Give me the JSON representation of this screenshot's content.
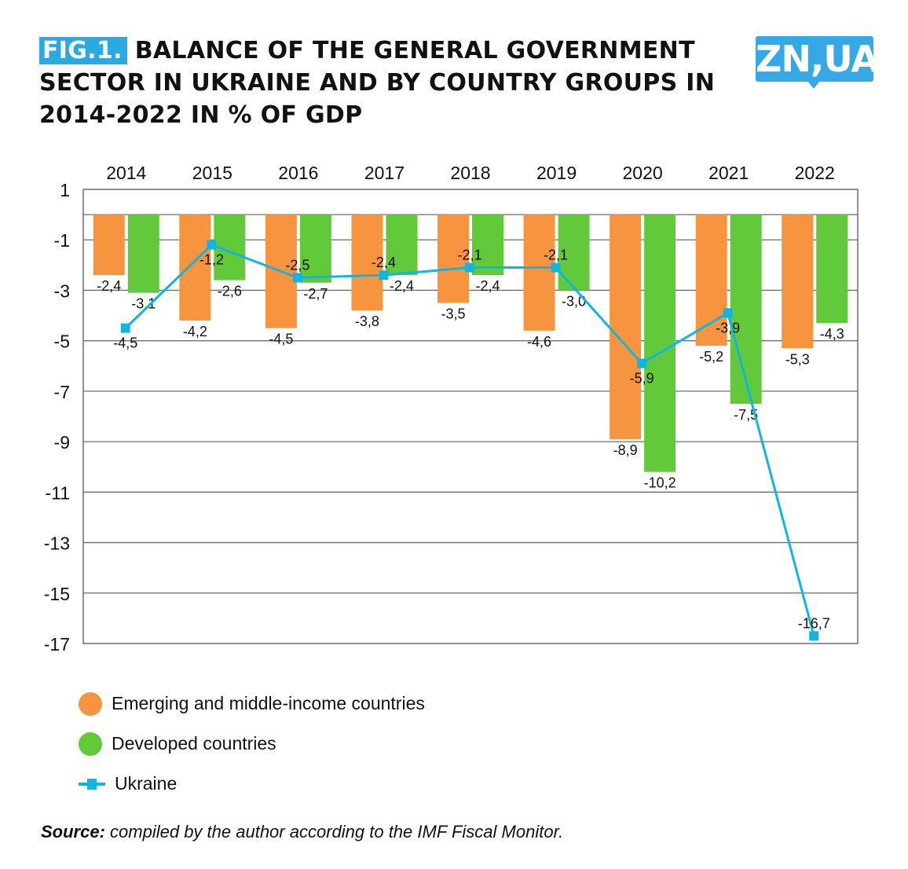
{
  "header": {
    "fig_tag": "FIG.1.",
    "title": "BALANCE OF THE GENERAL GOVERNMENT SECTOR IN UKRAINE AND BY COUNTRY GROUPS IN 2014-2022 IN % OF GDP",
    "logo": "ZN,UA"
  },
  "colors": {
    "emerging": "#F7943F",
    "developed": "#62C93A",
    "ukraine": "#12B5DF",
    "fig_tag_bg": "#29ABE2",
    "logo_bg": "#35A9E6",
    "grid": "#6d6d6d"
  },
  "chart_data": {
    "type": "bar",
    "title": "Balance of the general government sector in Ukraine and by country groups in 2014-2022 in % of GDP",
    "xlabel": "",
    "ylabel": "% of GDP",
    "x_axis_position": "top",
    "categories": [
      "2014",
      "2015",
      "2016",
      "2017",
      "2018",
      "2019",
      "2020",
      "2021",
      "2022"
    ],
    "ylim": [
      -17,
      1
    ],
    "yticks": [
      1,
      -1,
      -3,
      -5,
      -7,
      -9,
      -11,
      -13,
      -15,
      -17
    ],
    "ytick_labels": [
      "1",
      "-1",
      "-3",
      "-5",
      "-7",
      "-9",
      "-11",
      "-13",
      "-15",
      "-17"
    ],
    "grid": true,
    "series": [
      {
        "name": "Emerging and middle-income countries",
        "kind": "bar",
        "values": [
          -2.4,
          -4.2,
          -4.5,
          -3.8,
          -3.5,
          -4.6,
          -8.9,
          -5.2,
          -5.3
        ],
        "labels": [
          "-2,4",
          "-4,2",
          "-4,5",
          "-3,8",
          "-3,5",
          "-4,6",
          "-8,9",
          "-5,2",
          "-5,3"
        ]
      },
      {
        "name": "Developed countries",
        "kind": "bar",
        "values": [
          -3.1,
          -2.6,
          -2.7,
          -2.4,
          -2.4,
          -3.0,
          -10.2,
          -7.5,
          -4.3
        ],
        "labels": [
          "-3,1",
          "-2,6",
          "-2,7",
          "-2,4",
          "-2,4",
          "-3,0",
          "-10,2",
          "-7,5",
          "-4,3"
        ]
      },
      {
        "name": "Ukraine",
        "kind": "line",
        "values": [
          -4.5,
          -1.2,
          -2.5,
          -2.4,
          -2.1,
          -2.1,
          -5.9,
          -3.9,
          -16.7
        ],
        "labels": [
          "-4,5",
          "-1,2",
          "-2,5",
          "-2,4",
          "-2,1",
          "-2,1",
          "-5,9",
          "-3,9",
          "-16,7"
        ]
      }
    ],
    "legend_position": "bottom-left"
  },
  "legend": [
    {
      "label": "Emerging and middle-income countries",
      "marker": "circle-orange"
    },
    {
      "label": "Developed countries",
      "marker": "circle-green"
    },
    {
      "label": "Ukraine",
      "marker": "line-square-blue"
    }
  ],
  "source": {
    "label": "Source:",
    "text": " compiled by the author according to the IMF Fiscal Monitor."
  }
}
